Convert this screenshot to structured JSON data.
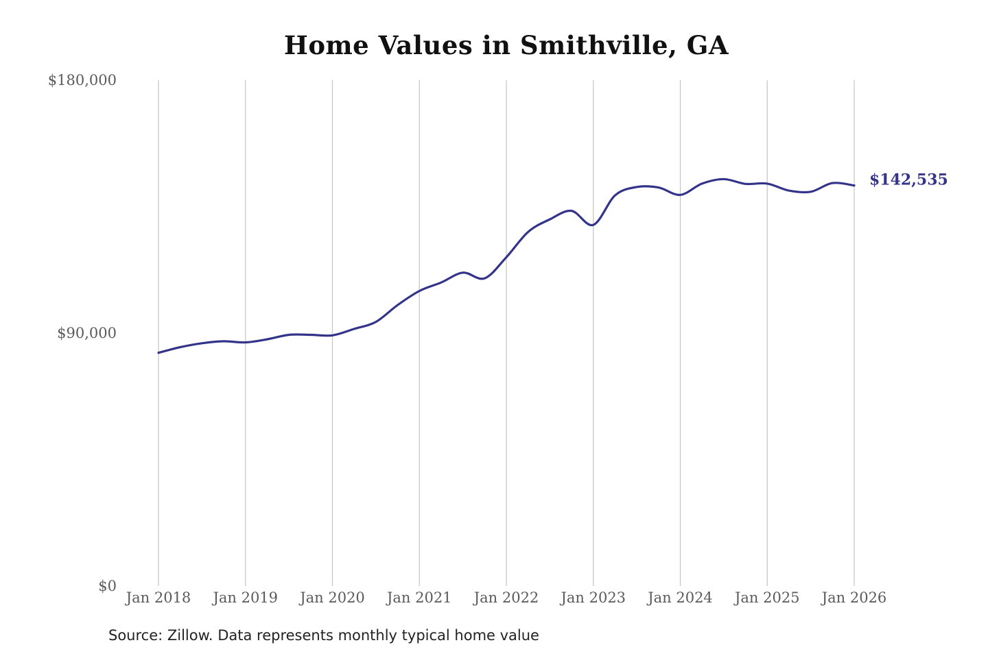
{
  "chart_data": {
    "type": "line",
    "title": "Home Values in Smithville, GA",
    "source": "Source: Zillow. Data represents monthly typical home value",
    "line_color": "#33338a",
    "grid": "vertical gridlines at each January",
    "ylim": [
      0,
      180000
    ],
    "y_ticks": [
      {
        "value": 0,
        "label": "$0"
      },
      {
        "value": 90000,
        "label": "$90,000"
      },
      {
        "value": 180000,
        "label": "$180,000"
      }
    ],
    "xlim": [
      "2018-01",
      "2026-01"
    ],
    "x_ticks": [
      {
        "date": "2018-01",
        "label": "Jan 2018"
      },
      {
        "date": "2019-01",
        "label": "Jan 2019"
      },
      {
        "date": "2020-01",
        "label": "Jan 2020"
      },
      {
        "date": "2021-01",
        "label": "Jan 2021"
      },
      {
        "date": "2022-01",
        "label": "Jan 2022"
      },
      {
        "date": "2023-01",
        "label": "Jan 2023"
      },
      {
        "date": "2024-01",
        "label": "Jan 2024"
      },
      {
        "date": "2025-01",
        "label": "Jan 2025"
      },
      {
        "date": "2026-01",
        "label": "Jan 2026"
      }
    ],
    "end_label": "$142,535",
    "series": [
      {
        "points": [
          {
            "x": "2018-01",
            "y": 83000
          },
          {
            "x": "2018-04",
            "y": 85000
          },
          {
            "x": "2018-07",
            "y": 86400
          },
          {
            "x": "2018-10",
            "y": 87100
          },
          {
            "x": "2019-01",
            "y": 86700
          },
          {
            "x": "2019-04",
            "y": 87800
          },
          {
            "x": "2019-07",
            "y": 89400
          },
          {
            "x": "2019-10",
            "y": 89400
          },
          {
            "x": "2020-01",
            "y": 89200
          },
          {
            "x": "2020-04",
            "y": 91500
          },
          {
            "x": "2020-07",
            "y": 94000
          },
          {
            "x": "2020-10",
            "y": 100000
          },
          {
            "x": "2021-01",
            "y": 105000
          },
          {
            "x": "2021-04",
            "y": 108000
          },
          {
            "x": "2021-07",
            "y": 111500
          },
          {
            "x": "2021-10",
            "y": 109500
          },
          {
            "x": "2022-01",
            "y": 117000
          },
          {
            "x": "2022-04",
            "y": 126000
          },
          {
            "x": "2022-07",
            "y": 130500
          },
          {
            "x": "2022-10",
            "y": 133500
          },
          {
            "x": "2023-01",
            "y": 128500
          },
          {
            "x": "2023-04",
            "y": 139000
          },
          {
            "x": "2023-07",
            "y": 142000
          },
          {
            "x": "2023-10",
            "y": 141800
          },
          {
            "x": "2024-01",
            "y": 139200
          },
          {
            "x": "2024-04",
            "y": 143200
          },
          {
            "x": "2024-07",
            "y": 144800
          },
          {
            "x": "2024-10",
            "y": 143100
          },
          {
            "x": "2025-01",
            "y": 143200
          },
          {
            "x": "2025-04",
            "y": 140700
          },
          {
            "x": "2025-07",
            "y": 140300
          },
          {
            "x": "2025-10",
            "y": 143400
          },
          {
            "x": "2026-01",
            "y": 142535
          }
        ]
      }
    ]
  }
}
